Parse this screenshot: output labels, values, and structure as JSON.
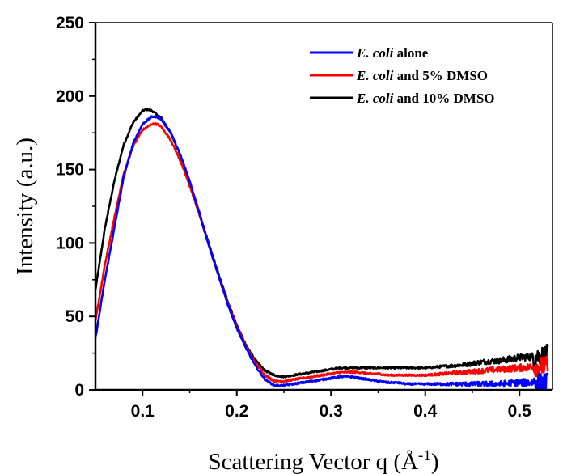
{
  "chart_data": {
    "type": "line",
    "xlabel": "Scattering Vector q (Å",
    "xlabel_sup": "-1",
    "xlabel_end": ")",
    "ylabel": "Intensity (a.u.)",
    "xlim": [
      0.05,
      0.535
    ],
    "ylim": [
      0,
      250
    ],
    "x_ticks": [
      0.1,
      0.2,
      0.3,
      0.4,
      0.5
    ],
    "x_tick_labels": [
      "0.1",
      "0.2",
      "0.3",
      "0.4",
      "0.5"
    ],
    "y_ticks": [
      0,
      50,
      100,
      150,
      200,
      250
    ],
    "y_tick_labels": [
      "0",
      "50",
      "100",
      "150",
      "200",
      "250"
    ],
    "grid": false,
    "legend_position": "top-right",
    "series": [
      {
        "name_italic": "E. coli",
        "name_rest": " alone",
        "color": "#0000ff",
        "x": [
          0.05,
          0.06,
          0.07,
          0.08,
          0.09,
          0.1,
          0.11,
          0.115,
          0.12,
          0.13,
          0.14,
          0.15,
          0.16,
          0.17,
          0.18,
          0.19,
          0.2,
          0.21,
          0.22,
          0.23,
          0.24,
          0.25,
          0.26,
          0.27,
          0.28,
          0.29,
          0.3,
          0.31,
          0.32,
          0.33,
          0.34,
          0.35,
          0.36,
          0.37,
          0.38,
          0.39,
          0.4,
          0.42,
          0.44,
          0.46,
          0.48,
          0.5,
          0.52,
          0.53
        ],
        "y": [
          35,
          75,
          110,
          145,
          168,
          181,
          186,
          186,
          184,
          175,
          160,
          142,
          121,
          99,
          79,
          59,
          42,
          28,
          16,
          7,
          3,
          3,
          4,
          5,
          6,
          7,
          8,
          9,
          9,
          8,
          7,
          6,
          5,
          5,
          4,
          4,
          4,
          4,
          4,
          4,
          4,
          5,
          5,
          5
        ]
      },
      {
        "name_italic": "E. coli",
        "name_rest": " and 5% DMSO",
        "color": "#ff0000",
        "x": [
          0.05,
          0.06,
          0.07,
          0.08,
          0.09,
          0.1,
          0.11,
          0.115,
          0.12,
          0.13,
          0.14,
          0.15,
          0.16,
          0.17,
          0.18,
          0.19,
          0.2,
          0.21,
          0.22,
          0.23,
          0.24,
          0.25,
          0.26,
          0.27,
          0.28,
          0.29,
          0.3,
          0.31,
          0.32,
          0.33,
          0.34,
          0.35,
          0.36,
          0.37,
          0.38,
          0.39,
          0.4,
          0.42,
          0.44,
          0.46,
          0.48,
          0.5,
          0.52,
          0.53
        ],
        "y": [
          47,
          85,
          117,
          147,
          166,
          177,
          181,
          181,
          179,
          170,
          156,
          139,
          120,
          99,
          79,
          60,
          43,
          29,
          18,
          10,
          6,
          6,
          7,
          8,
          9,
          10,
          11,
          12,
          12,
          12,
          11,
          11,
          10,
          10,
          10,
          10,
          10,
          11,
          12,
          13,
          14,
          15,
          16,
          16
        ]
      },
      {
        "name_italic": "E. coli",
        "name_rest": " and 10% DMSO",
        "color": "#000000",
        "x": [
          0.05,
          0.06,
          0.07,
          0.08,
          0.09,
          0.1,
          0.105,
          0.11,
          0.12,
          0.13,
          0.14,
          0.15,
          0.16,
          0.17,
          0.18,
          0.19,
          0.2,
          0.21,
          0.22,
          0.23,
          0.24,
          0.25,
          0.26,
          0.27,
          0.28,
          0.29,
          0.3,
          0.31,
          0.32,
          0.33,
          0.34,
          0.35,
          0.36,
          0.37,
          0.38,
          0.39,
          0.4,
          0.42,
          0.44,
          0.46,
          0.48,
          0.5,
          0.52,
          0.53
        ],
        "y": [
          68,
          110,
          142,
          167,
          182,
          190,
          191,
          190,
          185,
          175,
          160,
          142,
          121,
          100,
          80,
          61,
          44,
          30,
          20,
          13,
          10,
          9,
          10,
          11,
          12,
          13,
          14,
          15,
          15,
          15,
          15,
          15,
          15,
          15,
          15,
          15,
          15,
          16,
          17,
          19,
          20,
          22,
          23,
          24
        ]
      }
    ]
  }
}
